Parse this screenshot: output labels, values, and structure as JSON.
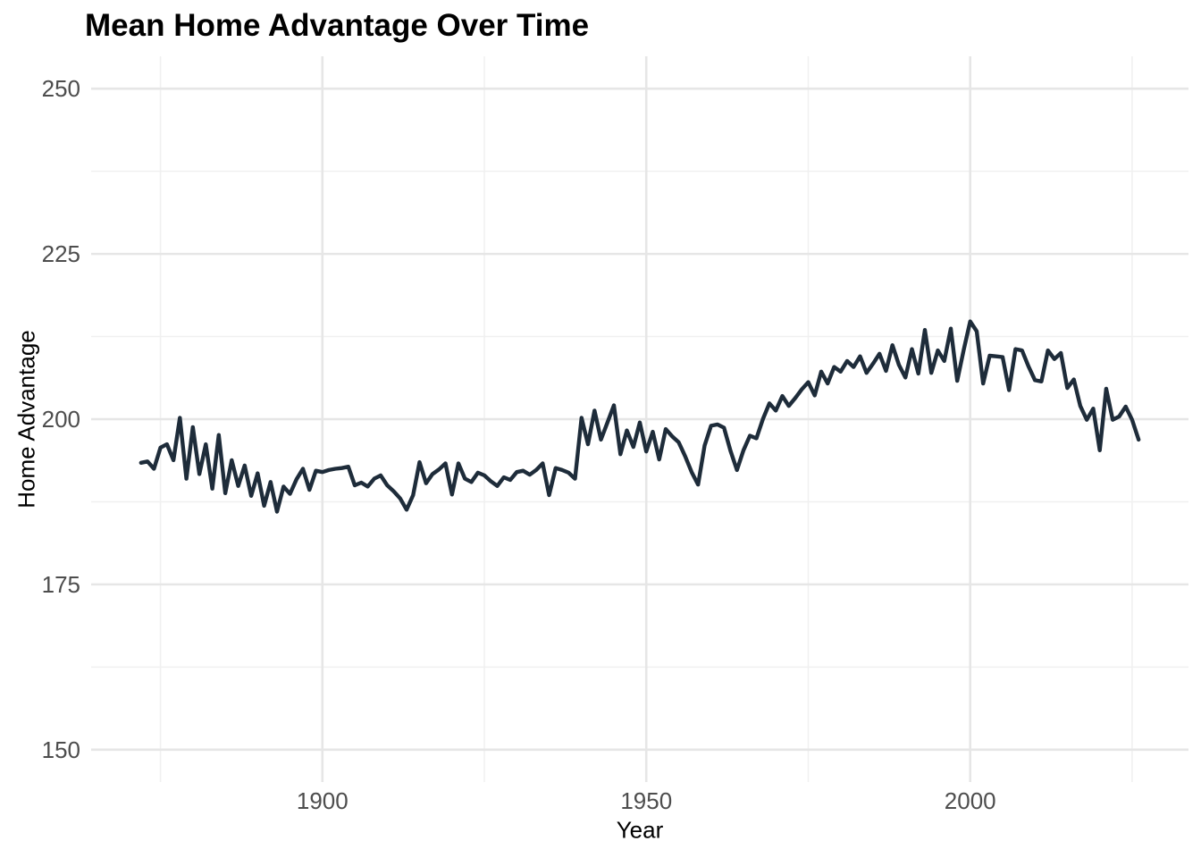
{
  "title": "Mean Home Advantage Over Time",
  "chart_data": {
    "type": "line",
    "title": "Mean Home Advantage Over Time",
    "xlabel": "Year",
    "ylabel": "Home Advantage",
    "x_ticks": [
      1900,
      1950,
      2000
    ],
    "x_minor_ticks": [
      1875,
      1925,
      1975,
      2025
    ],
    "y_ticks": [
      150,
      175,
      200,
      225,
      250
    ],
    "y_minor_ticks": [
      162.5,
      187.5,
      212.5,
      237.5
    ],
    "xlim": [
      1864.3,
      2033.7
    ],
    "ylim": [
      145.1,
      254.9
    ],
    "grid": "major+minor",
    "legend_position": "none",
    "line_color": "#1E2C3A",
    "grid_major_color": "#E6E6E6",
    "grid_minor_color": "#F0F0F0",
    "tick_label_color": "#4D4D4D",
    "series": [
      {
        "name": "mean_home_advantage",
        "x": {
          "start": 1872,
          "end": 2026,
          "step": 1
        },
        "values": [
          193.4,
          193.6,
          192.5,
          195.7,
          196.2,
          193.8,
          200.2,
          191.0,
          198.8,
          191.7,
          196.2,
          189.5,
          197.6,
          188.8,
          193.8,
          189.9,
          193.0,
          188.4,
          191.8,
          186.9,
          190.5,
          186.0,
          189.8,
          188.7,
          190.9,
          192.5,
          189.3,
          192.2,
          192.0,
          192.3,
          192.5,
          192.6,
          192.8,
          190.0,
          190.4,
          189.8,
          191.0,
          191.5,
          190.0,
          189.1,
          188.0,
          186.3,
          188.5,
          193.5,
          190.3,
          191.7,
          192.4,
          193.3,
          188.6,
          193.3,
          191.0,
          190.5,
          191.9,
          191.5,
          190.6,
          189.9,
          191.2,
          190.8,
          192.0,
          192.2,
          191.6,
          192.3,
          193.3,
          188.5,
          192.6,
          192.3,
          191.9,
          191.0,
          200.2,
          196.2,
          201.3,
          196.9,
          199.5,
          202.1,
          194.7,
          198.3,
          195.8,
          199.5,
          195.1,
          198.1,
          193.9,
          198.5,
          197.4,
          196.5,
          194.4,
          192.0,
          190.1,
          196.0,
          199.0,
          199.2,
          198.7,
          195.2,
          192.3,
          195.3,
          197.5,
          197.1,
          200.0,
          202.4,
          201.3,
          203.5,
          202.0,
          203.2,
          204.5,
          205.6,
          203.6,
          207.2,
          205.4,
          207.9,
          207.2,
          208.8,
          207.9,
          209.5,
          207.0,
          208.4,
          209.9,
          207.3,
          211.2,
          208.2,
          206.3,
          210.6,
          206.9,
          213.5,
          207.0,
          210.4,
          208.8,
          213.7,
          205.8,
          210.5,
          214.8,
          213.3,
          205.4,
          209.6,
          209.5,
          209.4,
          204.4,
          210.6,
          210.4,
          208.0,
          205.9,
          205.7,
          210.4,
          209.1,
          210.0,
          204.7,
          206.0,
          202.0,
          199.9,
          201.6,
          195.3,
          204.6,
          199.9,
          200.4,
          201.9,
          199.9,
          196.9
        ]
      }
    ]
  }
}
